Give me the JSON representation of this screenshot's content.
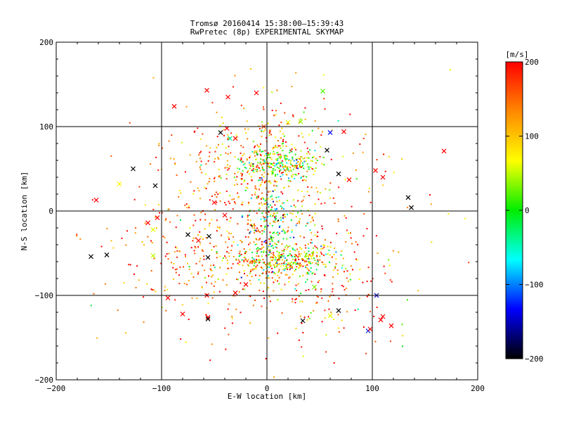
{
  "chart_data": {
    "type": "scatter",
    "title": "Tromsø 20160414 15:38:00–15:39:43",
    "subtitle": "RwPretec (8p) EXPERIMENTAL SKYMAP",
    "xlabel": "E-W location [km]",
    "ylabel": "N-S location [km]",
    "xlim": [
      -200,
      200
    ],
    "ylim": [
      -200,
      200
    ],
    "xticks": [
      "−200",
      "−100",
      "0",
      "100",
      "200"
    ],
    "yticks": [
      "200",
      "100",
      "0",
      "−100",
      "−200"
    ],
    "grid": true,
    "colorbar": {
      "label": "[m/s]",
      "min": -200,
      "max": 200,
      "ticks": [
        "200",
        "100",
        "0",
        "−100",
        "−200"
      ],
      "stops": [
        "#ff0000",
        "#ff8800",
        "#ffff00",
        "#00ee00",
        "#00ffff",
        "#0000ff",
        "#000000"
      ]
    },
    "clusters": [
      {
        "cx": 10,
        "cy": 55,
        "sx": 18,
        "sy": 10,
        "n": 260,
        "vmean": 40,
        "vspread": 140
      },
      {
        "cx": 20,
        "cy": -58,
        "sx": 30,
        "sy": 9,
        "n": 320,
        "vmean": 60,
        "vspread": 130
      },
      {
        "cx": 5,
        "cy": -15,
        "sx": 14,
        "sy": 25,
        "n": 180,
        "vmean": 10,
        "vspread": 140
      },
      {
        "cx": -20,
        "cy": 30,
        "sx": 45,
        "sy": 40,
        "n": 260,
        "vmean": 150,
        "vspread": 90
      },
      {
        "cx": -30,
        "cy": -60,
        "sx": 55,
        "sy": 40,
        "n": 300,
        "vmean": 150,
        "vspread": 90
      },
      {
        "cx": 0,
        "cy": 80,
        "sx": 35,
        "sy": 20,
        "n": 120,
        "vmean": 120,
        "vspread": 130
      },
      {
        "cx": 60,
        "cy": -100,
        "sx": 40,
        "sy": 30,
        "n": 120,
        "vmean": 150,
        "vspread": 110
      },
      {
        "cx": 0,
        "cy": 0,
        "sx": 80,
        "sy": 70,
        "n": 200,
        "vmean": 140,
        "vspread": 120
      }
    ],
    "crosses": [
      [
        -167,
        -54,
        -200
      ],
      [
        -152,
        -52,
        -200
      ],
      [
        -127,
        50,
        -200
      ],
      [
        -106,
        30,
        -200
      ],
      [
        -162,
        13,
        200
      ],
      [
        -140,
        32,
        70
      ],
      [
        -113,
        -14,
        200
      ],
      [
        -104,
        -8,
        200
      ],
      [
        -108,
        -22,
        60
      ],
      [
        -108,
        -53,
        50
      ],
      [
        -88,
        124,
        200
      ],
      [
        -75,
        -28,
        -200
      ],
      [
        -55,
        -30,
        -200
      ],
      [
        -56,
        -55,
        -200
      ],
      [
        -57,
        143,
        200
      ],
      [
        -38,
        98,
        200
      ],
      [
        -44,
        93,
        -200
      ],
      [
        -37,
        135,
        200
      ],
      [
        -10,
        140,
        200
      ],
      [
        -3,
        100,
        160
      ],
      [
        20,
        105,
        60
      ],
      [
        32,
        106,
        40
      ],
      [
        53,
        142,
        20
      ],
      [
        60,
        93,
        -130
      ],
      [
        57,
        72,
        -200
      ],
      [
        73,
        94,
        200
      ],
      [
        78,
        37,
        200
      ],
      [
        68,
        44,
        -200
      ],
      [
        103,
        48,
        200
      ],
      [
        110,
        40,
        200
      ],
      [
        134,
        16,
        -200
      ],
      [
        137,
        4,
        -200
      ],
      [
        168,
        71,
        200
      ],
      [
        104,
        -100,
        -150
      ],
      [
        108,
        -129,
        200
      ],
      [
        110,
        -125,
        200
      ],
      [
        96,
        -142,
        -120
      ],
      [
        98,
        -140,
        200
      ],
      [
        118,
        -136,
        200
      ],
      [
        -94,
        -103,
        200
      ],
      [
        -80,
        -122,
        200
      ],
      [
        -56,
        -126,
        200
      ],
      [
        -56,
        -128,
        -200
      ],
      [
        -20,
        -87,
        200
      ],
      [
        34,
        -130,
        -200
      ],
      [
        60,
        -124,
        60
      ],
      [
        68,
        -118,
        -200
      ],
      [
        -35,
        86,
        -40
      ],
      [
        -30,
        86,
        200
      ],
      [
        -57,
        -100,
        200
      ],
      [
        -30,
        -97,
        200
      ],
      [
        45,
        -90,
        30
      ],
      [
        -50,
        10,
        200
      ],
      [
        -40,
        -5,
        200
      ],
      [
        -65,
        -35,
        200
      ]
    ]
  }
}
